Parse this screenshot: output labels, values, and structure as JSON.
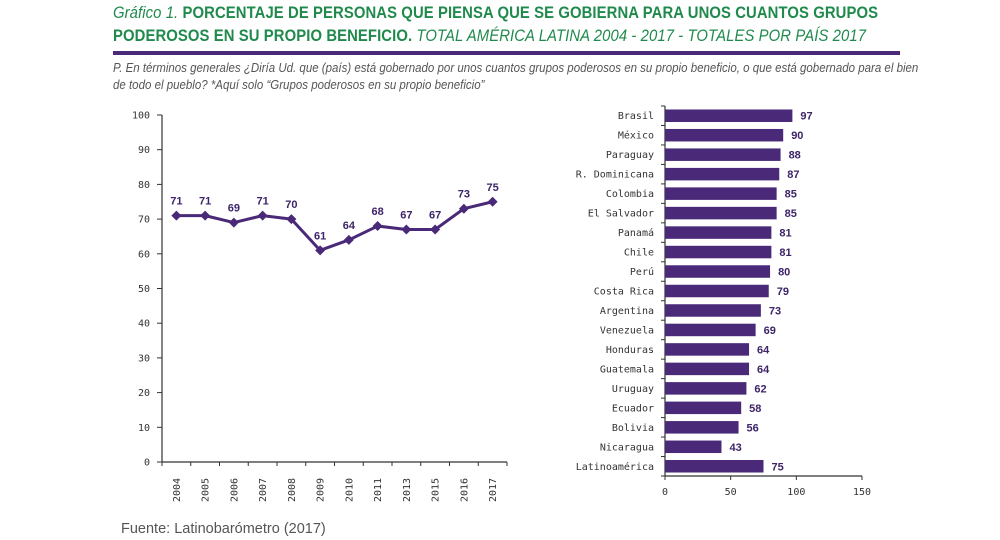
{
  "header": {
    "title_lead": "Gráfico 1.",
    "title_main": "PORCENTAJE DE PERSONAS QUE PIENSA QUE SE GOBIERNA PARA UNOS CUANTOS GRUPOS",
    "title_main2": "PODEROSOS EN SU PROPIO BENEFICIO.",
    "title_tail": "TOTAL AMÉRICA LATINA 2004 - 2017 - TOTALES POR PAÍS 2017",
    "question": "P. En términos generales ¿Diría Ud. que (país) está gobernado por unos cuantos grupos poderosos en su propio beneficio, o que está gobernado para el bien de todo el pueblo? *Aquí solo “Grupos poderosos en su propio beneficio”"
  },
  "footer": {
    "source": "Fuente: Latinobarómetro (2017)"
  },
  "colors": {
    "series": "#4a2a78",
    "title": "#1f8a4c",
    "rule": "#4a2a78",
    "axis": "#333333"
  },
  "chart_data": [
    {
      "type": "line",
      "title": "Total América Latina 2004 - 2017",
      "xlabel": "",
      "ylabel": "",
      "categories": [
        "2004",
        "2005",
        "2006",
        "2007",
        "2008",
        "2009",
        "2010",
        "2011",
        "2013",
        "2015",
        "2016",
        "2017"
      ],
      "values": [
        71,
        71,
        69,
        71,
        70,
        61,
        64,
        68,
        67,
        67,
        73,
        75
      ],
      "ylim": [
        0,
        100
      ],
      "yticks": [
        "0",
        "10",
        "20",
        "30",
        "40",
        "50",
        "60",
        "70",
        "80",
        "90",
        "100"
      ],
      "marker": "diamond",
      "grid": false,
      "data_labels": true
    },
    {
      "type": "bar",
      "orientation": "horizontal",
      "title": "Totales por país 2017",
      "categories": [
        "Brasil",
        "México",
        "Paraguay",
        "R. Dominicana",
        "Colombia",
        "El Salvador",
        "Panamá",
        "Chile",
        "Perú",
        "Costa Rica",
        "Argentina",
        "Venezuela",
        "Honduras",
        "Guatemala",
        "Uruguay",
        "Ecuador",
        "Bolivia",
        "Nicaragua",
        "Latinoamérica"
      ],
      "values": [
        97,
        90,
        88,
        87,
        85,
        85,
        81,
        81,
        80,
        79,
        73,
        69,
        64,
        64,
        62,
        58,
        56,
        43,
        75
      ],
      "xlim": [
        0,
        150
      ],
      "xticks": [
        "0",
        "50",
        "100",
        "150"
      ],
      "grid": false,
      "data_labels": true
    }
  ]
}
